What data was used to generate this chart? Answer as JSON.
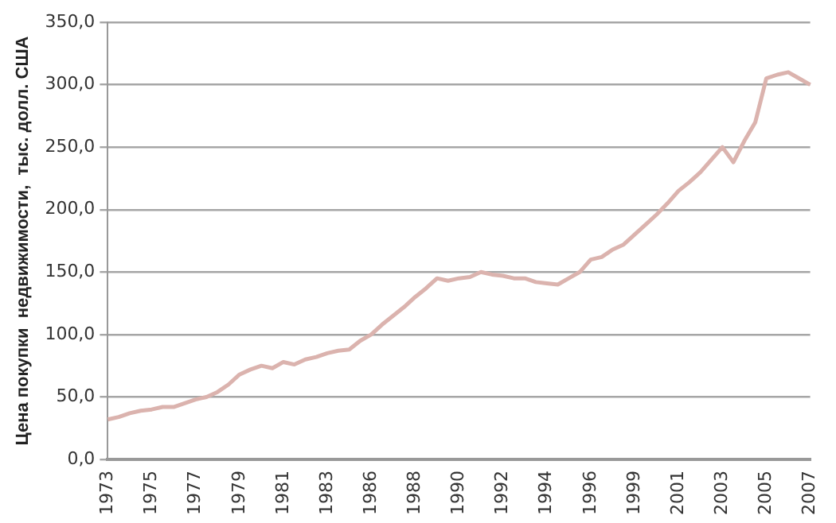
{
  "chart_data": {
    "type": "line",
    "ylabel": "Цена покупки  недвижимости,  тыс. долл. США",
    "categories": [
      "1973",
      null,
      null,
      null,
      "1975",
      null,
      null,
      null,
      "1977",
      null,
      null,
      null,
      "1979",
      null,
      null,
      null,
      "1981",
      null,
      null,
      null,
      "1983",
      null,
      null,
      null,
      "1986",
      null,
      null,
      null,
      "1988",
      null,
      null,
      null,
      "1990",
      null,
      null,
      null,
      "1992",
      null,
      null,
      null,
      "1994",
      null,
      null,
      null,
      "1996",
      null,
      null,
      null,
      "1999",
      null,
      null,
      null,
      "2001",
      null,
      null,
      null,
      "2003",
      null,
      null,
      null,
      "2005",
      null,
      null,
      null,
      "2007"
    ],
    "series": [
      {
        "color": "#dbb3ae",
        "values": [
          32,
          34,
          37,
          39,
          40,
          42,
          42,
          45,
          48,
          50,
          54,
          60,
          68,
          72,
          75,
          73,
          78,
          76,
          80,
          82,
          85,
          87,
          88,
          95,
          100,
          108,
          115,
          122,
          130,
          137,
          145,
          143,
          145,
          146,
          150,
          148,
          147,
          145,
          145,
          142,
          141,
          140,
          145,
          150,
          160,
          162,
          168,
          172,
          180,
          188,
          196,
          205,
          215,
          222,
          230,
          240,
          250,
          238,
          255,
          270,
          305,
          308,
          310,
          305,
          300
        ]
      }
    ],
    "ylim": [
      0,
      350
    ],
    "yticks": [
      {
        "value": 0,
        "label": "0,0"
      },
      {
        "value": 50,
        "label": "50,0"
      },
      {
        "value": 100,
        "label": "100,0"
      },
      {
        "value": 150,
        "label": "150,0"
      },
      {
        "value": 200,
        "label": "200,0"
      },
      {
        "value": 250,
        "label": "250,0"
      },
      {
        "value": 300,
        "label": "300,0"
      },
      {
        "value": 350,
        "label": "350,0"
      }
    ],
    "grid": "y",
    "legend": false,
    "marker": "none",
    "line_style": "solid"
  }
}
